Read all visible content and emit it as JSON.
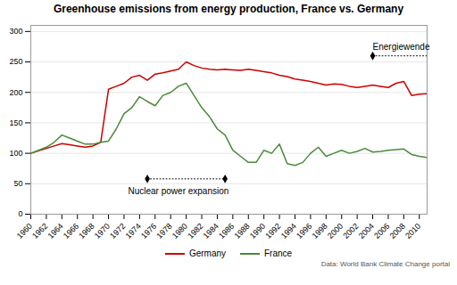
{
  "chart_data": {
    "type": "line",
    "title": "Greenhouse emissions from energy production, France vs. Germany",
    "caption": "Data: World Bank Climate Change portal",
    "x": [
      1960,
      1961,
      1962,
      1963,
      1964,
      1965,
      1966,
      1967,
      1968,
      1969,
      1970,
      1971,
      1972,
      1973,
      1974,
      1975,
      1976,
      1977,
      1978,
      1979,
      1980,
      1981,
      1982,
      1983,
      1984,
      1985,
      1986,
      1987,
      1988,
      1989,
      1990,
      1991,
      1992,
      1993,
      1994,
      1995,
      1996,
      1997,
      1998,
      1999,
      2000,
      2001,
      2002,
      2003,
      2004,
      2005,
      2006,
      2007,
      2008,
      2009,
      2010,
      2011
    ],
    "series": [
      {
        "name": "Germany",
        "color": "#cc0000",
        "values": [
          100,
          104,
          108,
          112,
          116,
          114,
          112,
          110,
          112,
          118,
          205,
          210,
          215,
          225,
          228,
          220,
          230,
          232,
          235,
          238,
          250,
          244,
          240,
          238,
          237,
          238,
          237,
          236,
          238,
          236,
          234,
          232,
          228,
          226,
          222,
          220,
          218,
          215,
          212,
          214,
          213,
          210,
          208,
          210,
          212,
          210,
          208,
          215,
          218,
          195,
          197,
          198
        ]
      },
      {
        "name": "France",
        "color": "#4a8a3a",
        "values": [
          100,
          105,
          110,
          118,
          130,
          125,
          120,
          115,
          115,
          118,
          120,
          140,
          165,
          175,
          193,
          185,
          178,
          195,
          200,
          210,
          215,
          195,
          175,
          160,
          140,
          130,
          105,
          95,
          85,
          85,
          105,
          100,
          115,
          83,
          80,
          85,
          100,
          110,
          95,
          100,
          105,
          100,
          103,
          108,
          102,
          103,
          105,
          106,
          107,
          98,
          95,
          93
        ]
      }
    ],
    "xlim": [
      1960,
      2011
    ],
    "xticks": [
      1960,
      1962,
      1964,
      1966,
      1968,
      1970,
      1972,
      1974,
      1976,
      1978,
      1980,
      1982,
      1984,
      1986,
      1988,
      1990,
      1992,
      1994,
      1996,
      1998,
      2000,
      2002,
      2004,
      2006,
      2008,
      2010
    ],
    "ylim": [
      0,
      310
    ],
    "yticks": [
      0,
      50,
      100,
      150,
      200,
      250,
      300
    ],
    "grid": true,
    "legend": "bottom",
    "annotations": [
      {
        "text": "Nuclear power expansion",
        "x": 1979,
        "y": 44,
        "line_x": [
          1975,
          1985
        ],
        "line_y": 58,
        "markers": [
          1975,
          1985
        ]
      },
      {
        "text": "Energiewende",
        "x": 2004,
        "y": 270,
        "line_x": [
          2004,
          2011
        ],
        "line_y": 260,
        "markers": [
          2004
        ]
      }
    ]
  }
}
